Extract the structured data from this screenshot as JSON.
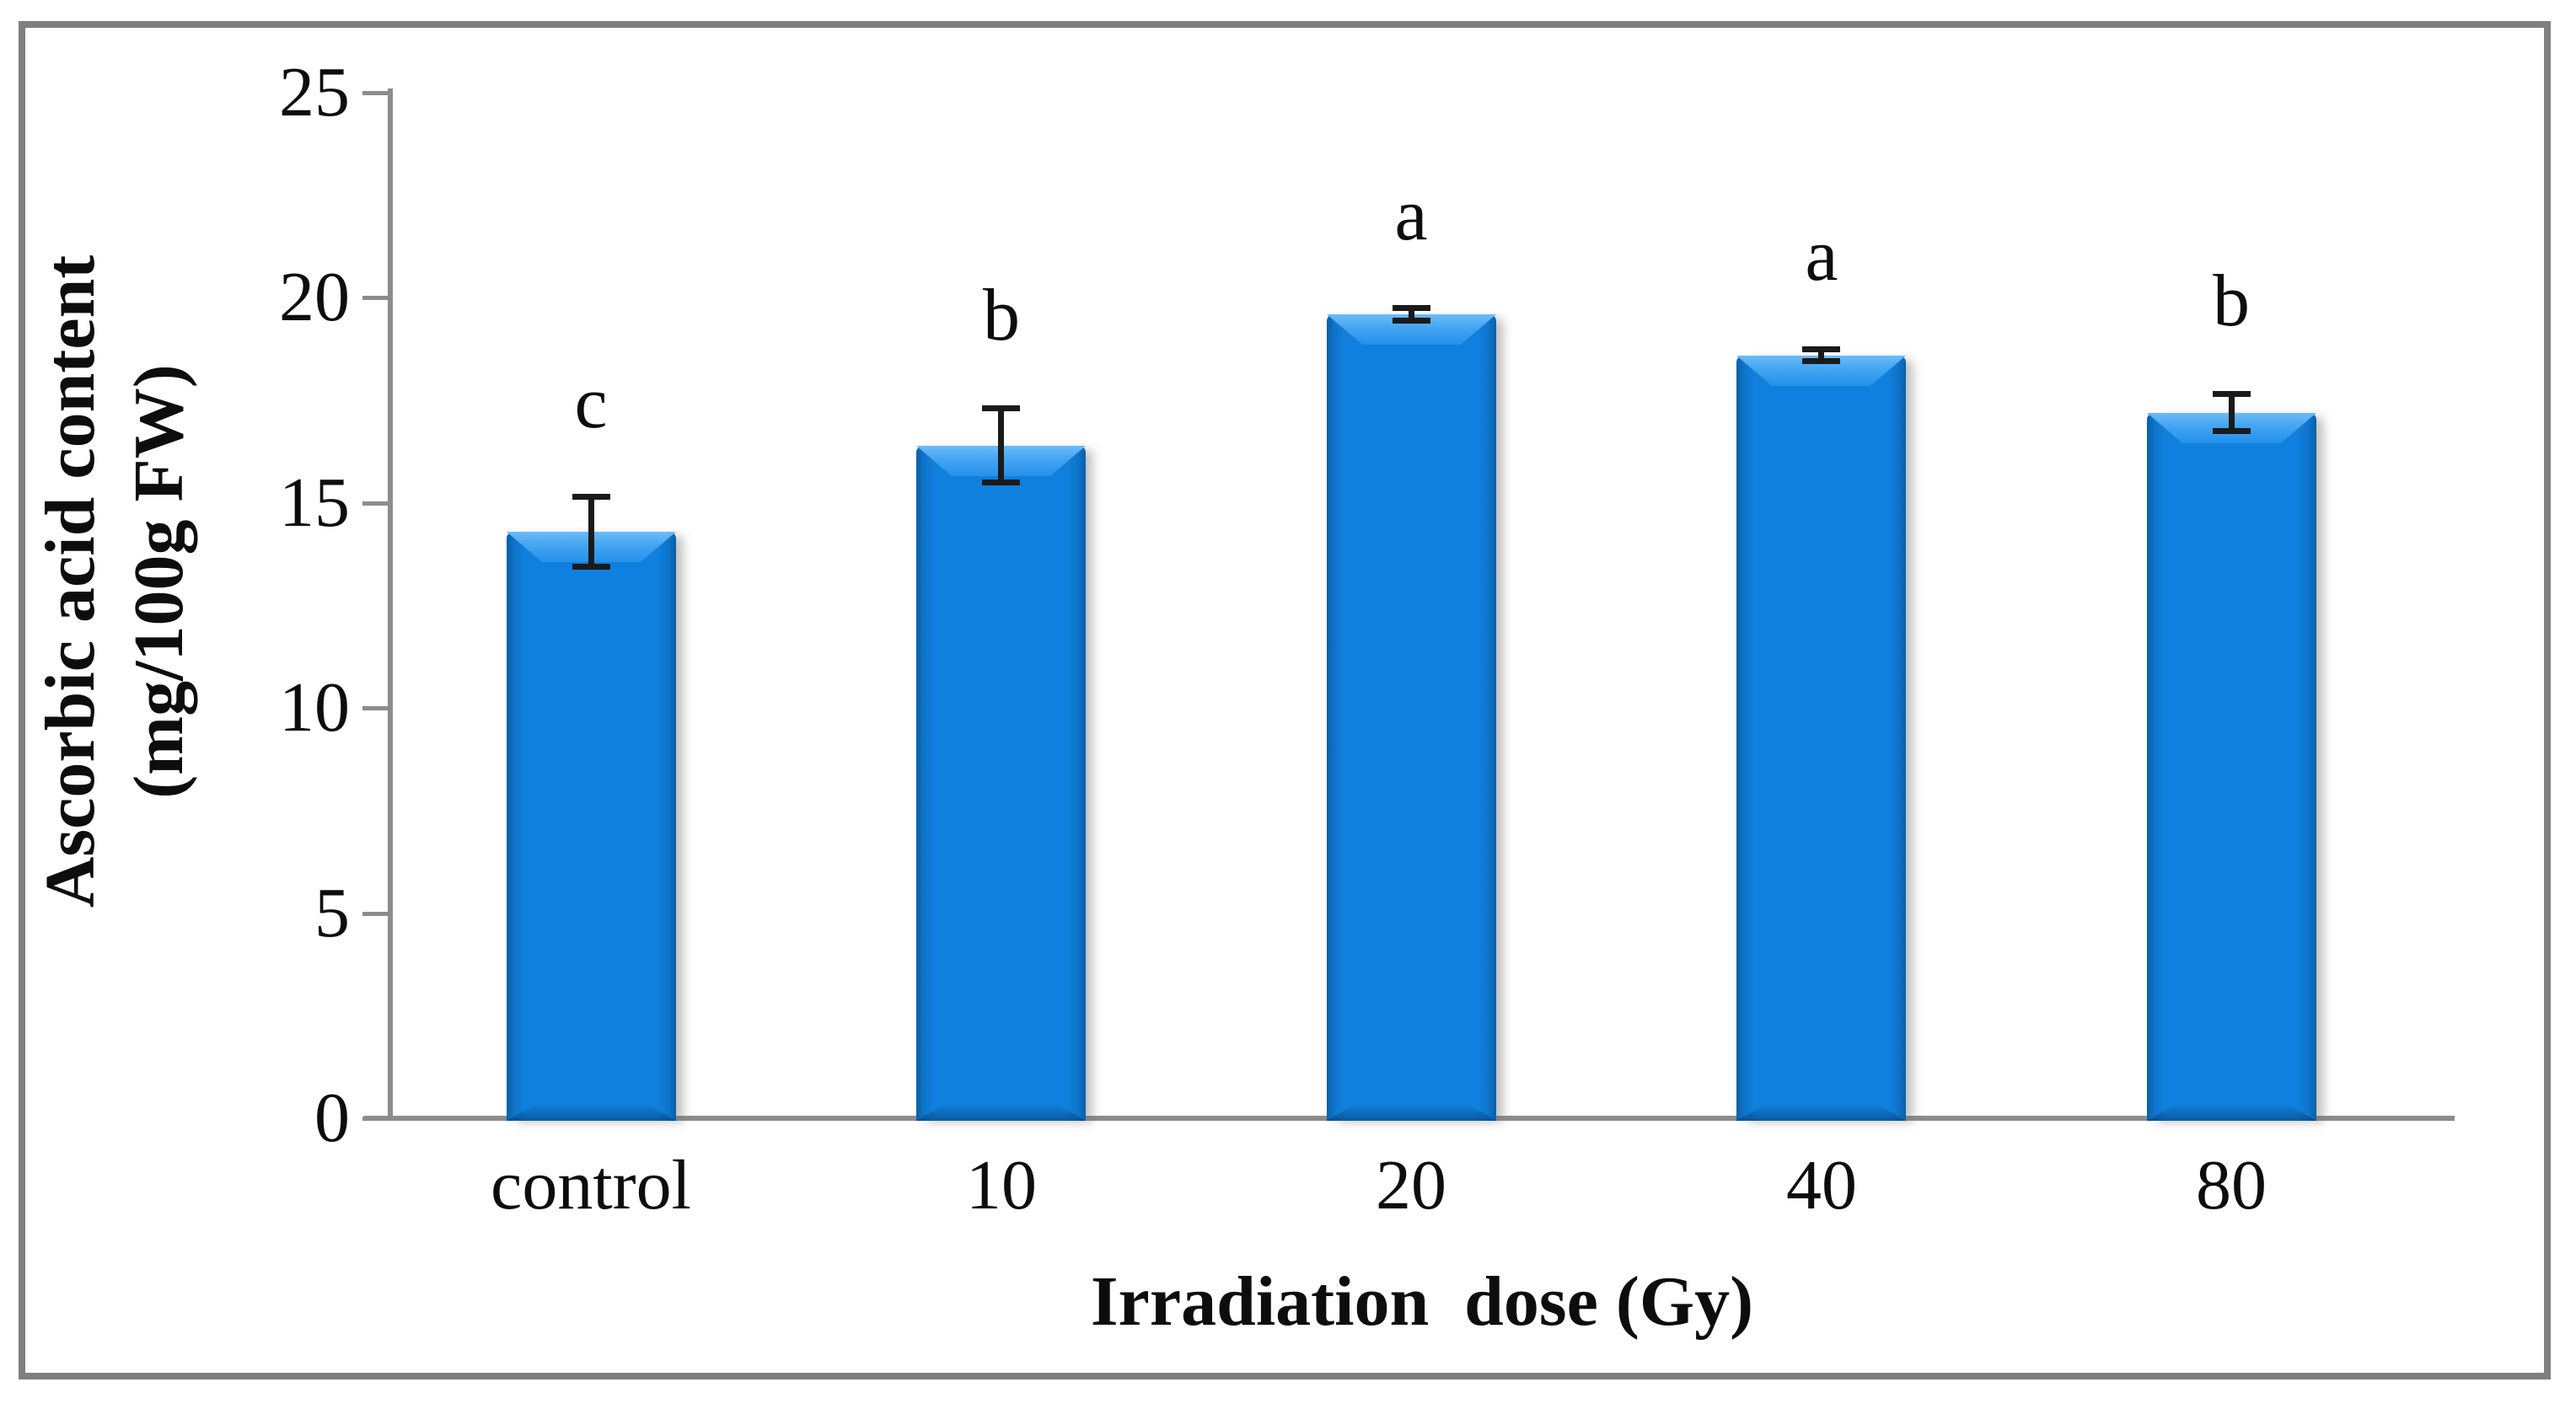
{
  "chart_data": {
    "type": "bar",
    "title": "",
    "categories": [
      "control",
      "10",
      "20",
      "40",
      "80"
    ],
    "values": [
      14.3,
      16.4,
      19.6,
      18.6,
      17.2
    ],
    "errors": [
      0.85,
      0.9,
      0.15,
      0.15,
      0.45
    ],
    "significance_letters": [
      "c",
      "b",
      "a",
      "a",
      "b"
    ],
    "xlabel": "Irradiation  dose (Gy)",
    "ylabel_line1": "Ascorbic acid content",
    "ylabel_line2": "(mg/100g FW)",
    "ylim": [
      0,
      25
    ],
    "yticks": [
      0,
      5,
      10,
      15,
      20,
      25
    ],
    "ytick_interval": 5,
    "grid": false,
    "legend": "none",
    "colors": {
      "bar_fill": "#1080df",
      "bar_bevel_light": "#47a7f1",
      "bar_edge_dark": "#0a5fa6",
      "axis_gray": "#8c8c8c",
      "frame_gray": "#7f7f7f",
      "error_bar": "#1a1a1a",
      "text": "#0d0d0d",
      "background": "#ffffff"
    }
  }
}
